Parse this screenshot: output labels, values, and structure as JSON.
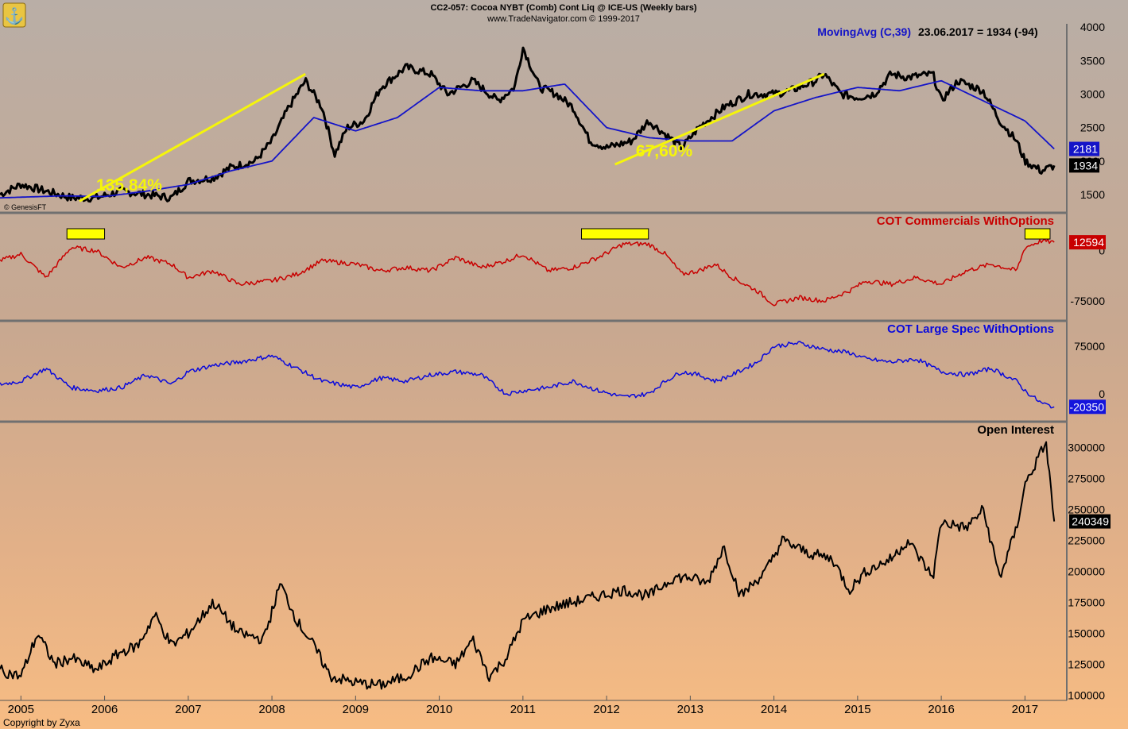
{
  "header": {
    "title": "CC2-057:  Cocoa NYBT (Comb) Cont Liq @ ICE-US  (Weekly bars)",
    "subtitle": "www.TradeNavigator.com © 1999-2017",
    "genesis": "© GenesisFT",
    "copyright": "Copyright by Zyxa"
  },
  "colors": {
    "price": "#000000",
    "ma": "#1414c8",
    "commercials": "#c80000",
    "large_spec": "#0a0adc",
    "oi": "#000000",
    "trend": "#f5f50a",
    "highlight": "#ffff00"
  },
  "chart_data": [
    {
      "type": "line",
      "panel": "price",
      "title": "CC2-057:  Cocoa NYBT (Comb) Cont Liq @ ICE-US  (Weekly bars)",
      "ma_label": "MovingAvg (C,39)",
      "ma_value_text": "23.06.2017 = 1934 (-94)",
      "ylim": [
        1250,
        4050
      ],
      "y_ticks": [
        "4000",
        "3500",
        "3000",
        "2500",
        "2000",
        "1500"
      ],
      "last_close_label": "1934",
      "last_ma_label": "2181",
      "annotations": [
        "135,84%",
        "67,60%"
      ],
      "series": [
        {
          "name": "",
          "x": [
            2004.75,
            2005.0,
            2005.3,
            2005.6,
            2005.9,
            2006.2,
            2006.5,
            2006.8,
            2007.0,
            2007.3,
            2007.5,
            2007.8,
            2008.0,
            2008.2,
            2008.4,
            2008.6,
            2008.75,
            2008.9,
            2009.1,
            2009.3,
            2009.6,
            2009.9,
            2010.1,
            2010.4,
            2010.7,
            2010.9,
            2011.0,
            2011.2,
            2011.4,
            2011.6,
            2011.8,
            2012.0,
            2012.3,
            2012.5,
            2012.7,
            2012.9,
            2013.1,
            2013.4,
            2013.7,
            2014.0,
            2014.2,
            2014.5,
            2014.6,
            2014.8,
            2015.0,
            2015.2,
            2015.4,
            2015.6,
            2015.9,
            2016.0,
            2016.2,
            2016.5,
            2016.7,
            2016.9,
            2017.0,
            2017.2,
            2017.35
          ],
          "values": [
            1500,
            1650,
            1550,
            1450,
            1450,
            1550,
            1500,
            1450,
            1700,
            1750,
            1900,
            2000,
            2300,
            2800,
            3200,
            2800,
            2100,
            2500,
            2600,
            3100,
            3400,
            3300,
            3000,
            3200,
            2900,
            3100,
            3700,
            3100,
            3000,
            2800,
            2300,
            2200,
            2300,
            2600,
            2400,
            2200,
            2500,
            2800,
            3000,
            3000,
            3050,
            3200,
            3300,
            3000,
            2950,
            3000,
            3300,
            3250,
            3300,
            2900,
            3200,
            3050,
            2600,
            2300,
            2000,
            1850,
            1934
          ]
        },
        {
          "name": "MovingAvg (C,39)",
          "x": [
            2004.75,
            2005.5,
            2006.0,
            2006.5,
            2007.0,
            2007.5,
            2008.0,
            2008.5,
            2009.0,
            2009.5,
            2010.0,
            2010.5,
            2011.0,
            2011.5,
            2012.0,
            2012.5,
            2013.0,
            2013.5,
            2014.0,
            2014.5,
            2015.0,
            2015.5,
            2016.0,
            2016.5,
            2017.0,
            2017.35
          ],
          "values": [
            1450,
            1480,
            1470,
            1550,
            1650,
            1850,
            2000,
            2650,
            2450,
            2650,
            3100,
            3050,
            3050,
            3150,
            2500,
            2350,
            2300,
            2300,
            2750,
            2950,
            3100,
            3050,
            3200,
            2900,
            2600,
            2181
          ]
        }
      ]
    },
    {
      "type": "line",
      "panel": "commercials",
      "title": "COT Commercials WithOptions",
      "y_ticks": [
        "0",
        "-75000"
      ],
      "ylim": [
        -100000,
        40000
      ],
      "last_value_label": "12594",
      "series": [
        {
          "name": "COT Commercials WithOptions",
          "x": [
            2004.75,
            2005.0,
            2005.3,
            2005.6,
            2005.9,
            2006.2,
            2006.5,
            2006.8,
            2007.0,
            2007.3,
            2007.6,
            2008.0,
            2008.3,
            2008.6,
            2009.0,
            2009.3,
            2009.6,
            2009.9,
            2010.2,
            2010.5,
            2010.8,
            2011.0,
            2011.3,
            2011.6,
            2011.9,
            2012.2,
            2012.5,
            2012.7,
            2012.9,
            2013.1,
            2013.3,
            2013.5,
            2013.8,
            2014.0,
            2014.3,
            2014.6,
            2014.9,
            2015.1,
            2015.4,
            2015.7,
            2016.0,
            2016.3,
            2016.6,
            2016.9,
            2017.0,
            2017.2,
            2017.35
          ],
          "values": [
            -15000,
            -5000,
            -40000,
            5000,
            0,
            -25000,
            -10000,
            -20000,
            -40000,
            -30000,
            -50000,
            -45000,
            -35000,
            -15000,
            -20000,
            -30000,
            -25000,
            -30000,
            -10000,
            -25000,
            -15000,
            -5000,
            -30000,
            -25000,
            -10000,
            10000,
            10000,
            -5000,
            -35000,
            -30000,
            -20000,
            -40000,
            -60000,
            -80000,
            -70000,
            -75000,
            -60000,
            -45000,
            -50000,
            -40000,
            -50000,
            -30000,
            -20000,
            -30000,
            5000,
            15000,
            12594
          ]
        }
      ]
    },
    {
      "type": "line",
      "panel": "large_spec",
      "title": "COT Large Spec WithOptions",
      "y_ticks": [
        "75000",
        "0"
      ],
      "ylim": [
        -40000,
        100000
      ],
      "last_value_label": "-20350",
      "series": [
        {
          "name": "COT Large Spec WithOptions",
          "x": [
            2004.75,
            2005.0,
            2005.3,
            2005.6,
            2005.9,
            2006.2,
            2006.5,
            2006.8,
            2007.0,
            2007.3,
            2007.6,
            2008.0,
            2008.3,
            2008.6,
            2009.0,
            2009.3,
            2009.6,
            2009.9,
            2010.2,
            2010.5,
            2010.8,
            2011.0,
            2011.3,
            2011.6,
            2011.9,
            2012.2,
            2012.5,
            2012.7,
            2012.9,
            2013.1,
            2013.3,
            2013.5,
            2013.8,
            2014.0,
            2014.3,
            2014.6,
            2014.9,
            2015.1,
            2015.4,
            2015.7,
            2016.0,
            2016.3,
            2016.6,
            2016.9,
            2017.0,
            2017.2,
            2017.35
          ],
          "values": [
            15000,
            20000,
            40000,
            10000,
            5000,
            10000,
            30000,
            15000,
            35000,
            45000,
            50000,
            60000,
            40000,
            20000,
            10000,
            25000,
            20000,
            30000,
            35000,
            30000,
            0,
            5000,
            10000,
            20000,
            5000,
            -5000,
            0,
            20000,
            35000,
            30000,
            20000,
            30000,
            50000,
            75000,
            80000,
            70000,
            65000,
            55000,
            50000,
            55000,
            35000,
            30000,
            40000,
            20000,
            5000,
            -15000,
            -20350
          ]
        }
      ]
    },
    {
      "type": "line",
      "panel": "open_interest",
      "title": "Open Interest",
      "y_ticks": [
        "300000",
        "275000",
        "250000",
        "225000",
        "200000",
        "175000",
        "150000",
        "125000",
        "100000"
      ],
      "ylim": [
        97000,
        310000
      ],
      "last_value_label": "240349",
      "x_tick_labels": [
        "2005",
        "2006",
        "2007",
        "2008",
        "2009",
        "2010",
        "2011",
        "2012",
        "2013",
        "2014",
        "2015",
        "2016",
        "2017"
      ],
      "series": [
        {
          "name": "Open Interest",
          "x": [
            2004.75,
            2005.0,
            2005.2,
            2005.4,
            2005.6,
            2005.9,
            2006.2,
            2006.4,
            2006.6,
            2006.8,
            2007.0,
            2007.3,
            2007.6,
            2007.9,
            2008.1,
            2008.3,
            2008.5,
            2008.7,
            2009.0,
            2009.3,
            2009.6,
            2009.9,
            2010.2,
            2010.4,
            2010.6,
            2010.8,
            2011.0,
            2011.3,
            2011.6,
            2011.9,
            2012.2,
            2012.5,
            2012.8,
            2013.0,
            2013.2,
            2013.4,
            2013.6,
            2013.9,
            2014.1,
            2014.4,
            2014.7,
            2014.9,
            2015.1,
            2015.4,
            2015.6,
            2015.9,
            2016.0,
            2016.3,
            2016.5,
            2016.7,
            2016.9,
            2017.0,
            2017.15,
            2017.25,
            2017.35
          ],
          "values": [
            120000,
            115000,
            150000,
            125000,
            130000,
            120000,
            135000,
            140000,
            165000,
            140000,
            150000,
            175000,
            150000,
            145000,
            190000,
            160000,
            140000,
            115000,
            110000,
            108000,
            115000,
            130000,
            125000,
            145000,
            115000,
            130000,
            160000,
            170000,
            175000,
            180000,
            185000,
            180000,
            195000,
            195000,
            190000,
            220000,
            180000,
            200000,
            225000,
            215000,
            210000,
            185000,
            200000,
            210000,
            225000,
            195000,
            240000,
            235000,
            250000,
            195000,
            235000,
            270000,
            290000,
            305000,
            240349
          ]
        }
      ]
    }
  ]
}
